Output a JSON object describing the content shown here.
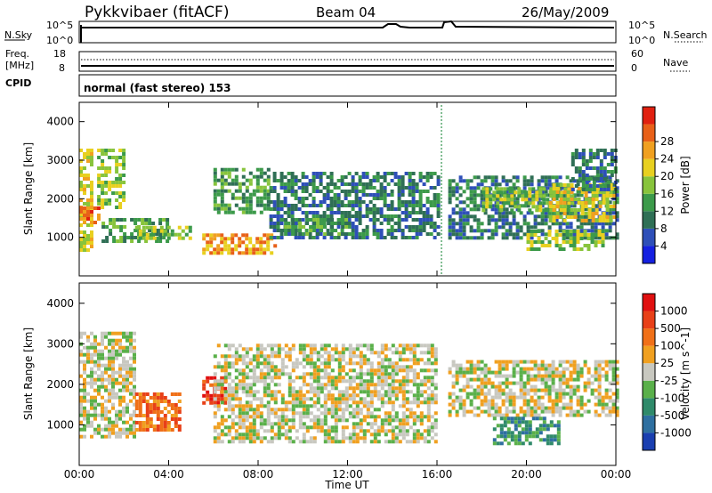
{
  "header": {
    "station": "Pykkvibaer (fitACF)",
    "beam": "Beam 04",
    "date": "26/May/2009"
  },
  "panels": {
    "nsky": {
      "left_label": "N.Sky",
      "left_ticks": [
        "10^5",
        "10^0"
      ],
      "right_label": "N.Search",
      "right_ticks": [
        "10^5",
        "10^0"
      ]
    },
    "freq": {
      "left_label_1": "Freq.",
      "left_label_2": "[MHz]",
      "left_ticks": [
        "18",
        "8"
      ],
      "right_label": "Nave",
      "right_ticks": [
        "60",
        "0"
      ]
    },
    "cpid": {
      "label": "CPID",
      "text": "normal (fast stereo) 153"
    }
  },
  "chart_data": [
    {
      "type": "heatmap",
      "name": "power",
      "ylabel": "Slant Range [km]",
      "xlabel": "Time UT",
      "xlim": [
        "00:00",
        "24:00"
      ],
      "ylim": [
        0,
        4500
      ],
      "x_ticks": [
        "00:00",
        "04:00",
        "08:00",
        "12:00",
        "16:00",
        "20:00",
        "00:00"
      ],
      "y_ticks": [
        1000,
        2000,
        3000,
        4000
      ],
      "colorbar": {
        "label": "Power [dB]",
        "ticks": [
          "4",
          "8",
          "12",
          "16",
          "20",
          "24",
          "28"
        ],
        "colors": [
          "#1520e0",
          "#2e4fb8",
          "#2f6f55",
          "#3c9a4a",
          "#88c43c",
          "#e8d020",
          "#f0a020",
          "#e86018",
          "#e02010"
        ]
      },
      "regions": [
        {
          "t0": 0.0,
          "t1": 0.5,
          "r0": 700,
          "r1": 3300,
          "level": 5
        },
        {
          "t0": 0.0,
          "t1": 0.8,
          "r0": 1400,
          "r1": 1800,
          "level": 7
        },
        {
          "t0": 0.8,
          "t1": 2.0,
          "r0": 1800,
          "r1": 3300,
          "level": 4
        },
        {
          "t0": 1.0,
          "t1": 4.0,
          "r0": 900,
          "r1": 1500,
          "level": 3
        },
        {
          "t0": 2.5,
          "t1": 5.0,
          "r0": 1000,
          "r1": 1300,
          "level": 4
        },
        {
          "t0": 5.5,
          "t1": 9.0,
          "r0": 600,
          "r1": 1100,
          "level": 6
        },
        {
          "t0": 6.0,
          "t1": 8.5,
          "r0": 1600,
          "r1": 2800,
          "level": 3
        },
        {
          "t0": 8.5,
          "t1": 16.0,
          "r0": 1000,
          "r1": 2700,
          "level": 2
        },
        {
          "t0": 9.0,
          "t1": 12.0,
          "r0": 1100,
          "r1": 1500,
          "level": 3
        },
        {
          "t0": 16.5,
          "t1": 24.0,
          "r0": 1000,
          "r1": 2600,
          "level": 2
        },
        {
          "t0": 18.0,
          "t1": 22.0,
          "r0": 1700,
          "r1": 2300,
          "level": 4
        },
        {
          "t0": 20.0,
          "t1": 23.5,
          "r0": 700,
          "r1": 1200,
          "level": 4
        },
        {
          "t0": 21.0,
          "t1": 24.0,
          "r0": 1400,
          "r1": 2400,
          "level": 5
        },
        {
          "t0": 22.0,
          "t1": 24.0,
          "r0": 2200,
          "r1": 3300,
          "level": 2
        }
      ]
    },
    {
      "type": "heatmap",
      "name": "velocity",
      "ylabel": "Slant Range [km]",
      "xlabel": "Time UT",
      "xlim": [
        "00:00",
        "24:00"
      ],
      "ylim": [
        0,
        4500
      ],
      "x_ticks": [
        "00:00",
        "04:00",
        "08:00",
        "12:00",
        "16:00",
        "20:00",
        "00:00"
      ],
      "y_ticks": [
        1000,
        2000,
        3000,
        4000
      ],
      "colorbar": {
        "label": "Velocity [m s^-1]",
        "ticks": [
          "1000",
          "500",
          "100",
          "25",
          "-25",
          "-100",
          "-500",
          "-1000"
        ],
        "colors": [
          "#1a3fb0",
          "#2e6fa0",
          "#2f8a6a",
          "#5ab04a",
          "#c8c8c0",
          "#f0a020",
          "#f07018",
          "#e84018",
          "#e01010"
        ]
      },
      "regions": [
        {
          "t0": 0.0,
          "t1": 2.5,
          "r0": 700,
          "r1": 3300,
          "level": 4
        },
        {
          "t0": 2.5,
          "t1": 4.5,
          "r0": 900,
          "r1": 1800,
          "level": 6
        },
        {
          "t0": 5.5,
          "t1": 6.5,
          "r0": 1500,
          "r1": 2200,
          "level": 7
        },
        {
          "t0": 6.0,
          "t1": 16.0,
          "r0": 600,
          "r1": 3000,
          "level": 4
        },
        {
          "t0": 16.5,
          "t1": 24.0,
          "r0": 1200,
          "r1": 2600,
          "level": 4
        },
        {
          "t0": 18.5,
          "t1": 21.5,
          "r0": 500,
          "r1": 1200,
          "level": 2
        }
      ]
    }
  ]
}
